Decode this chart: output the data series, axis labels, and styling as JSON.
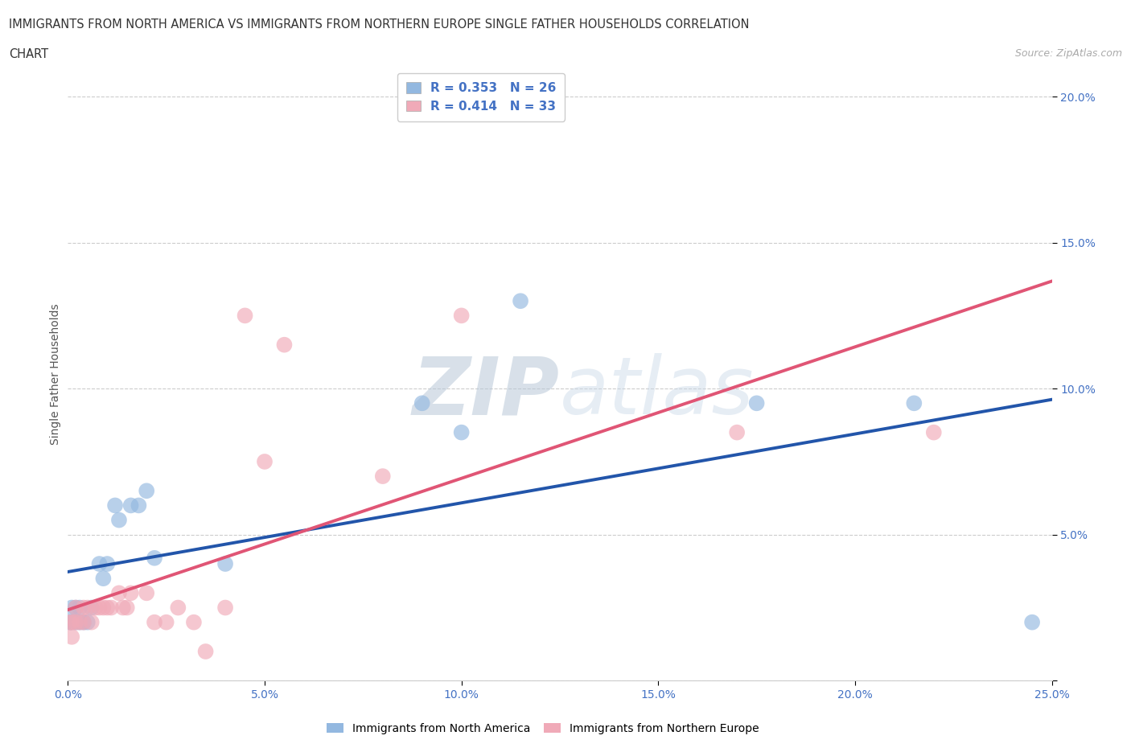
{
  "title_line1": "IMMIGRANTS FROM NORTH AMERICA VS IMMIGRANTS FROM NORTHERN EUROPE SINGLE FATHER HOUSEHOLDS CORRELATION",
  "title_line2": "CHART",
  "source": "Source: ZipAtlas.com",
  "ylabel": "Single Father Households",
  "blue_R": 0.353,
  "blue_N": 26,
  "pink_R": 0.414,
  "pink_N": 33,
  "blue_color": "#93b8e0",
  "pink_color": "#f0aab8",
  "blue_line_color": "#2255aa",
  "pink_line_color": "#e05575",
  "watermark_color": "#d0dce8",
  "xlim": [
    0.0,
    0.25
  ],
  "ylim": [
    0.0,
    0.21
  ],
  "xticks": [
    0.0,
    0.05,
    0.1,
    0.15,
    0.2,
    0.25
  ],
  "yticks": [
    0.0,
    0.05,
    0.1,
    0.15,
    0.2
  ],
  "blue_x": [
    0.0005,
    0.001,
    0.001,
    0.002,
    0.002,
    0.003,
    0.003,
    0.004,
    0.005,
    0.006,
    0.008,
    0.009,
    0.01,
    0.012,
    0.013,
    0.016,
    0.018,
    0.02,
    0.022,
    0.04,
    0.09,
    0.1,
    0.115,
    0.175,
    0.215,
    0.245
  ],
  "blue_y": [
    0.02,
    0.02,
    0.025,
    0.02,
    0.025,
    0.02,
    0.025,
    0.02,
    0.02,
    0.025,
    0.04,
    0.035,
    0.04,
    0.06,
    0.055,
    0.06,
    0.06,
    0.065,
    0.042,
    0.04,
    0.095,
    0.085,
    0.13,
    0.095,
    0.095,
    0.02
  ],
  "pink_x": [
    0.0005,
    0.001,
    0.001,
    0.002,
    0.002,
    0.003,
    0.004,
    0.004,
    0.005,
    0.006,
    0.007,
    0.008,
    0.009,
    0.01,
    0.011,
    0.013,
    0.014,
    0.015,
    0.016,
    0.02,
    0.022,
    0.025,
    0.028,
    0.032,
    0.035,
    0.04,
    0.045,
    0.05,
    0.055,
    0.08,
    0.1,
    0.17,
    0.22
  ],
  "pink_y": [
    0.02,
    0.015,
    0.02,
    0.02,
    0.025,
    0.02,
    0.02,
    0.025,
    0.025,
    0.02,
    0.025,
    0.025,
    0.025,
    0.025,
    0.025,
    0.03,
    0.025,
    0.025,
    0.03,
    0.03,
    0.02,
    0.02,
    0.025,
    0.02,
    0.01,
    0.025,
    0.125,
    0.075,
    0.115,
    0.07,
    0.125,
    0.085,
    0.085
  ],
  "legend_blue_label": "R = 0.353   N = 26",
  "legend_pink_label": "R = 0.414   N = 33",
  "bottom_legend_blue": "Immigrants from North America",
  "bottom_legend_pink": "Immigrants from Northern Europe"
}
